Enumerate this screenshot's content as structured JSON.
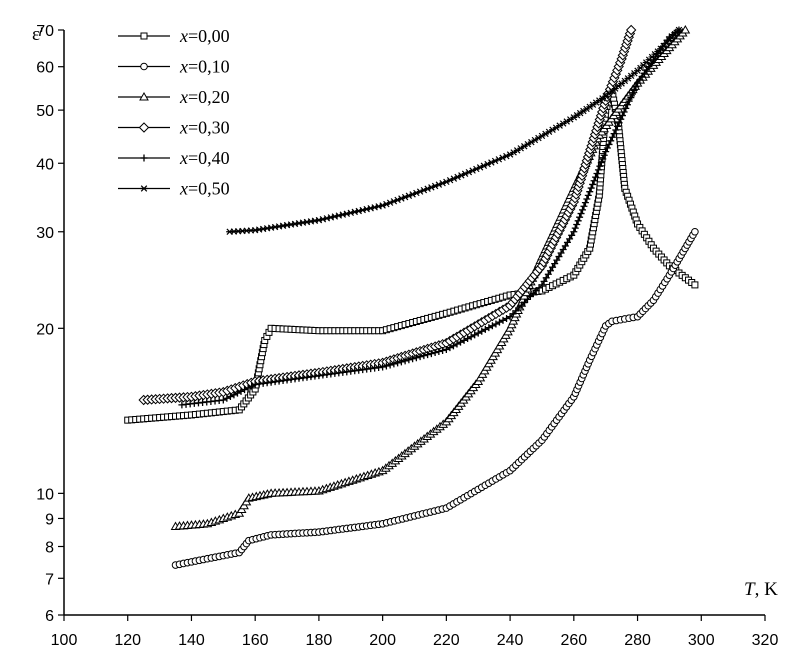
{
  "chart_data": {
    "type": "scatter",
    "xlabel_var": "T",
    "xlabel_unit": ", K",
    "ylabel": "ε'",
    "xlim": [
      100,
      320
    ],
    "ylim": [
      6,
      70
    ],
    "yscale": "log",
    "x_ticks": [
      "100",
      "120",
      "140",
      "160",
      "180",
      "200",
      "220",
      "240",
      "260",
      "280",
      "300",
      "320"
    ],
    "y_ticks": [
      {
        "v": 6,
        "label": "6"
      },
      {
        "v": 7,
        "label": "7"
      },
      {
        "v": 8,
        "label": "8"
      },
      {
        "v": 9,
        "label": "9"
      },
      {
        "v": 10,
        "label": "10"
      },
      {
        "v": 20,
        "label": "20"
      },
      {
        "v": 30,
        "label": "30"
      },
      {
        "v": 40,
        "label": "40"
      },
      {
        "v": 50,
        "label": "50"
      },
      {
        "v": 60,
        "label": "60"
      },
      {
        "v": 70,
        "label": "70"
      }
    ],
    "grid": false,
    "legend_position": "top-left",
    "series": [
      {
        "name": "x=0,00",
        "var": "x",
        "value": "=0,00",
        "marker": "square",
        "points": [
          [
            120,
            13.6
          ],
          [
            140,
            13.9
          ],
          [
            155,
            14.2
          ],
          [
            160,
            15.5
          ],
          [
            163,
            19.0
          ],
          [
            165,
            20.0
          ],
          [
            180,
            19.8
          ],
          [
            200,
            19.8
          ],
          [
            220,
            21.3
          ],
          [
            240,
            23.0
          ],
          [
            250,
            23.4
          ],
          [
            260,
            25.0
          ],
          [
            265,
            28.0
          ],
          [
            268,
            35.0
          ],
          [
            270,
            50.0
          ],
          [
            272,
            54.0
          ],
          [
            274,
            47.0
          ],
          [
            276,
            36.0
          ],
          [
            280,
            31.0
          ],
          [
            285,
            28.0
          ],
          [
            290,
            26.0
          ],
          [
            298,
            24.0
          ]
        ]
      },
      {
        "name": "x=0,10",
        "var": "x",
        "value": "=0,10",
        "marker": "circle",
        "points": [
          [
            135,
            7.4
          ],
          [
            145,
            7.6
          ],
          [
            155,
            7.8
          ],
          [
            158,
            8.2
          ],
          [
            165,
            8.4
          ],
          [
            180,
            8.5
          ],
          [
            200,
            8.8
          ],
          [
            220,
            9.4
          ],
          [
            240,
            11.0
          ],
          [
            250,
            12.5
          ],
          [
            260,
            15.0
          ],
          [
            265,
            17.5
          ],
          [
            270,
            20.2
          ],
          [
            272,
            20.6
          ],
          [
            280,
            21.0
          ],
          [
            285,
            22.5
          ],
          [
            290,
            25.0
          ],
          [
            298,
            30.0
          ]
        ]
      },
      {
        "name": "x=0,20",
        "var": "x",
        "value": "=0,20",
        "marker": "triangle",
        "points": [
          [
            135,
            8.7
          ],
          [
            145,
            8.8
          ],
          [
            155,
            9.2
          ],
          [
            158,
            9.8
          ],
          [
            165,
            10.0
          ],
          [
            180,
            10.1
          ],
          [
            200,
            11.0
          ],
          [
            220,
            13.5
          ],
          [
            230,
            16.0
          ],
          [
            240,
            20.0
          ],
          [
            250,
            27.0
          ],
          [
            260,
            36.0
          ],
          [
            268,
            45.0
          ],
          [
            280,
            56.0
          ],
          [
            290,
            65.0
          ],
          [
            295,
            70.0
          ]
        ]
      },
      {
        "name": "x=0,30",
        "var": "x",
        "value": "=0,30",
        "marker": "diamond",
        "points": [
          [
            125,
            14.8
          ],
          [
            140,
            15.0
          ],
          [
            150,
            15.3
          ],
          [
            160,
            16.0
          ],
          [
            170,
            16.3
          ],
          [
            180,
            16.6
          ],
          [
            200,
            17.3
          ],
          [
            220,
            18.8
          ],
          [
            240,
            22.0
          ],
          [
            250,
            26.0
          ],
          [
            260,
            34.0
          ],
          [
            270,
            52.0
          ],
          [
            275,
            62.0
          ],
          [
            278,
            70.0
          ]
        ]
      },
      {
        "name": "x=0,40",
        "var": "x",
        "value": "=0,40",
        "marker": "plus",
        "points": [
          [
            137,
            14.5
          ],
          [
            150,
            14.8
          ],
          [
            160,
            15.8
          ],
          [
            170,
            16.1
          ],
          [
            180,
            16.4
          ],
          [
            200,
            17.0
          ],
          [
            220,
            18.3
          ],
          [
            240,
            21.0
          ],
          [
            250,
            24.0
          ],
          [
            260,
            30.0
          ],
          [
            270,
            42.0
          ],
          [
            280,
            56.0
          ],
          [
            290,
            68.0
          ],
          [
            293,
            70.0
          ]
        ]
      },
      {
        "name": "x=0,50",
        "var": "x",
        "value": "=0,50",
        "marker": "star",
        "points": [
          [
            152,
            30.0
          ],
          [
            160,
            30.2
          ],
          [
            180,
            31.5
          ],
          [
            200,
            33.5
          ],
          [
            220,
            37.0
          ],
          [
            240,
            41.5
          ],
          [
            260,
            48.5
          ],
          [
            270,
            53.0
          ],
          [
            280,
            59.0
          ],
          [
            290,
            67.0
          ],
          [
            293,
            70.0
          ]
        ]
      }
    ]
  }
}
